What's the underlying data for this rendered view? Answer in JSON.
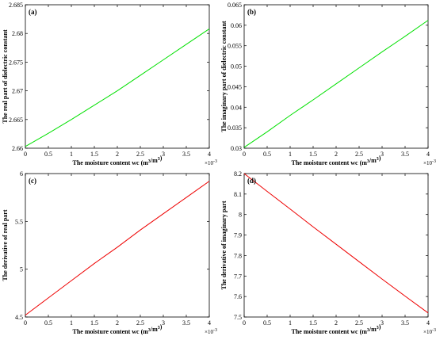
{
  "chart_data": [
    {
      "type": "line",
      "panel_label": "(a)",
      "xlabel_main": "The moisture content wc (m",
      "xlabel_sup1": "3",
      "xlabel_mid": "/m",
      "xlabel_sup2": "3",
      "xlabel_end": ")",
      "ylabel": "The real part of dielectric constant",
      "x_multiplier": "×10",
      "x_multiplier_exp": "-3",
      "xlim": [
        0,
        4
      ],
      "ylim": [
        2.66,
        2.685
      ],
      "xticks": [
        "0",
        "0.5",
        "1",
        "1.5",
        "2",
        "2.5",
        "3",
        "3.5",
        "4"
      ],
      "yticks": [
        "2.66",
        "2.665",
        "2.67",
        "2.675",
        "2.68",
        "2.685"
      ],
      "color": "#00e000",
      "x": [
        0,
        0.5,
        1,
        1.5,
        2,
        2.5,
        3,
        3.5,
        4
      ],
      "y": [
        2.6603,
        2.6626,
        2.665,
        2.6675,
        2.67,
        2.6727,
        2.6754,
        2.6781,
        2.6808
      ]
    },
    {
      "type": "line",
      "panel_label": "(b)",
      "xlabel_main": "The moisture content wc (m",
      "xlabel_sup1": "3",
      "xlabel_mid": "/m",
      "xlabel_sup2": "3",
      "xlabel_end": ")",
      "ylabel": "The imaginary part of dielectric constant",
      "x_multiplier": "×10",
      "x_multiplier_exp": "-3",
      "xlim": [
        0,
        4
      ],
      "ylim": [
        0.03,
        0.065
      ],
      "xticks": [
        "0",
        "0.5",
        "1",
        "1.5",
        "2",
        "2.5",
        "3",
        "3.5",
        "4"
      ],
      "yticks": [
        "0.03",
        "0.035",
        "0.04",
        "0.045",
        "0.05",
        "0.055",
        "0.06",
        "0.065"
      ],
      "color": "#00e000",
      "x": [
        0,
        0.5,
        1,
        1.5,
        2,
        2.5,
        3,
        3.5,
        4
      ],
      "y": [
        0.0302,
        0.034,
        0.038,
        0.0418,
        0.0457,
        0.0496,
        0.0535,
        0.0573,
        0.0612
      ]
    },
    {
      "type": "line",
      "panel_label": "(c)",
      "xlabel_main": "The moisture content wc (m",
      "xlabel_sup1": "3",
      "xlabel_mid": "/m",
      "xlabel_sup2": "3",
      "xlabel_end": ")",
      "ylabel": "The derivative of real part",
      "x_multiplier": "×10",
      "x_multiplier_exp": "-3",
      "xlim": [
        0,
        4
      ],
      "ylim": [
        4.5,
        6
      ],
      "xticks": [
        "0",
        "0.5",
        "1",
        "1.5",
        "2",
        "2.5",
        "3",
        "3.5",
        "4"
      ],
      "yticks": [
        "4.5",
        "5",
        "5.5",
        "6"
      ],
      "color": "#ee0000",
      "x": [
        0,
        0.5,
        1,
        1.5,
        2,
        2.5,
        3,
        3.5,
        4
      ],
      "y": [
        4.52,
        4.7,
        4.88,
        5.06,
        5.23,
        5.41,
        5.58,
        5.75,
        5.92
      ]
    },
    {
      "type": "line",
      "panel_label": "(d)",
      "xlabel_main": "The moisture content wc (m",
      "xlabel_sup1": "3",
      "xlabel_mid": "/m",
      "xlabel_sup2": "3",
      "xlabel_end": ")",
      "ylabel": "The derivative of imaginary part",
      "x_multiplier": "×10",
      "x_multiplier_exp": "-3",
      "xlim": [
        0,
        4
      ],
      "ylim": [
        7.5,
        8.2
      ],
      "xticks": [
        "0",
        "0.5",
        "1",
        "1.5",
        "2",
        "2.5",
        "3",
        "3.5",
        "4"
      ],
      "yticks": [
        "7.5",
        "7.6",
        "7.7",
        "7.8",
        "7.9",
        "8",
        "8.1",
        "8.2"
      ],
      "color": "#ee0000",
      "x": [
        0,
        0.5,
        1,
        1.5,
        2,
        2.5,
        3,
        3.5,
        4
      ],
      "y": [
        8.2,
        8.113,
        8.027,
        7.94,
        7.855,
        7.77,
        7.685,
        7.602,
        7.52
      ]
    }
  ]
}
